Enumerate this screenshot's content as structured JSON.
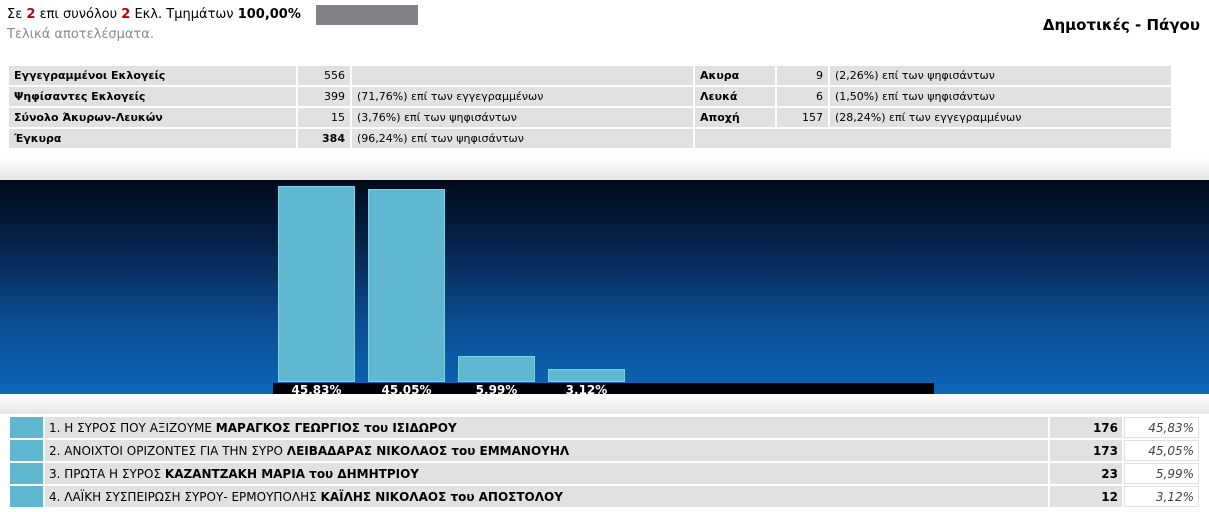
{
  "header": {
    "prefix": "Σε",
    "counted": "2",
    "middle": "επι συνόλου",
    "total": "2",
    "suffix": "Εκλ. Τμημάτων",
    "percent": "100,00%",
    "progress": 1.0,
    "subtitle": "Τελικά αποτελέσματα.",
    "election": "Δημοτικές - Πάγου"
  },
  "summary": {
    "left": [
      {
        "label": "Εγγεγραμμένοι Εκλογείς",
        "value": "556",
        "note": ""
      },
      {
        "label": "Ψηφίσαντες Εκλογείς",
        "value": "399",
        "note": "(71,76%) επί των εγγεγραμμένων"
      },
      {
        "label": "Σύνολο Άκυρων-Λευκών",
        "value": "15",
        "note": "(3,76%) επί των ψηφισάντων"
      },
      {
        "label": "Έγκυρα",
        "value": "384",
        "note": "(96,24%) επί των ψηφισάντων"
      }
    ],
    "right": [
      {
        "label": "Ακυρα",
        "value": "9",
        "note": "(2,26%) επί των ψηφισάντων"
      },
      {
        "label": "Λευκά",
        "value": "6",
        "note": "(1,50%) επί των ψηφισάντων"
      },
      {
        "label": "Αποχή",
        "value": "157",
        "note": "(28,24%) επί των εγγεγραμμένων"
      }
    ]
  },
  "chart_data": {
    "type": "bar",
    "categories": [
      "1",
      "2",
      "3",
      "4"
    ],
    "values": [
      45.83,
      45.05,
      5.99,
      3.12
    ],
    "labels": [
      "45,83%",
      "45,05%",
      "5,99%",
      "3,12%"
    ],
    "ylim": [
      0,
      50
    ],
    "bar_color": "#5fb8d0"
  },
  "results": [
    {
      "pre": "1. Η ΣΥΡΟΣ ΠΟΥ ΑΞΙΖΟΥΜΕ",
      "leader": "ΜΑΡΑΓΚΟΣ ΓΕΩΡΓΙΟΣ του ΙΣΙΔΩΡΟΥ",
      "votes": "176",
      "pct": "45,83%"
    },
    {
      "pre": "2. ΑΝΟΙΧΤΟΙ ΟΡΙΖΟΝΤΕΣ ΓΙΑ ΤΗΝ ΣΥΡΟ",
      "leader": "ΛΕΙΒΑΔΑΡΑΣ ΝΙΚΟΛΑΟΣ του ΕΜΜΑΝΟΥΗΛ",
      "votes": "173",
      "pct": "45,05%"
    },
    {
      "pre": "3. ΠΡΩΤΑ Η ΣΥΡΟΣ",
      "leader": "ΚΑΖΑΝΤΖΑΚΗ ΜΑΡΙΑ του ΔΗΜΗΤΡΙΟΥ",
      "votes": "23",
      "pct": "5,99%"
    },
    {
      "pre": "4. ΛΑΪΚΗ ΣΥΣΠΕΙΡΩΣΗ ΣΥΡΟΥ- ΕΡΜΟΥΠΟΛΗΣ",
      "leader": "ΚΑΪΛΗΣ ΝΙΚΟΛΑΟΣ του ΑΠΟΣΤΟΛΟΥ",
      "votes": "12",
      "pct": "3,12%"
    }
  ],
  "colors": {
    "accent": "#5fb8d0",
    "counted": "#c00000",
    "progress": "#808285"
  }
}
